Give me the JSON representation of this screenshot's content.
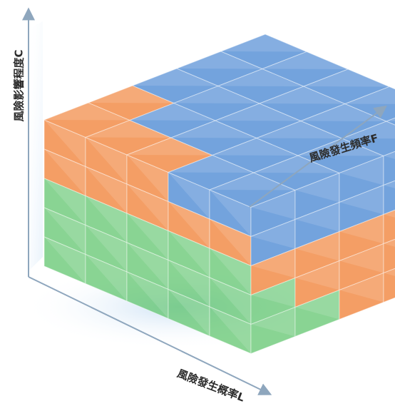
{
  "axes": {
    "consequence": "風險影響程度C",
    "frequency": "風險發生頻率F",
    "likelihood": "風險發生概率L"
  },
  "cube": {
    "divisions": 5,
    "zones": {
      "high": "#3d7fd0",
      "medium": "#f0782a",
      "low": "#5cc46a"
    }
  },
  "colors": {
    "axis": "#8ea6bd",
    "text": "#2b2b2b",
    "wall": "#dcebfa"
  }
}
